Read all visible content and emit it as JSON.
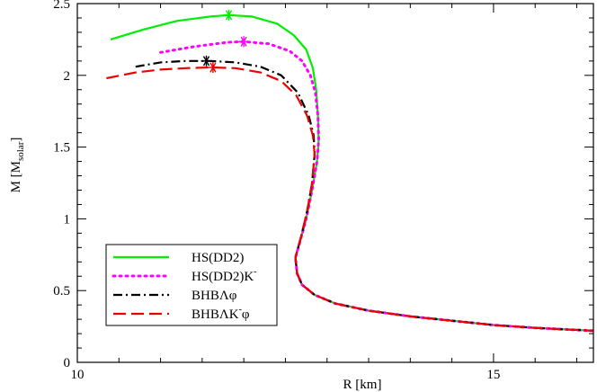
{
  "chart_data": {
    "type": "line",
    "title": "",
    "xlabel": "R [km]",
    "ylabel_main": "M [M",
    "ylabel_sub": "solar",
    "ylabel_close": "]",
    "xlim": [
      10,
      16.2
    ],
    "ylim": [
      0,
      2.5
    ],
    "xticks": [
      10,
      15
    ],
    "yticks": [
      0,
      0.5,
      1,
      1.5,
      2,
      2.5
    ],
    "xtick_labels": [
      "10",
      "15"
    ],
    "ytick_labels": [
      "0",
      "0.5",
      "1",
      "1.5",
      "2",
      "2.5"
    ],
    "minor_x_step": 0.5,
    "minor_y_step": 0.1,
    "grid": false,
    "legend_position": "bottom-left",
    "series": [
      {
        "name": "HS(DD2)",
        "color": "#00ee00",
        "style": "solid",
        "points": [
          [
            10.4,
            2.25
          ],
          [
            10.8,
            2.32
          ],
          [
            11.2,
            2.38
          ],
          [
            11.6,
            2.41
          ],
          [
            11.82,
            2.42
          ],
          [
            12.1,
            2.41
          ],
          [
            12.4,
            2.36
          ],
          [
            12.6,
            2.28
          ],
          [
            12.75,
            2.18
          ],
          [
            12.83,
            2.05
          ],
          [
            12.87,
            1.9
          ],
          [
            12.89,
            1.72
          ],
          [
            12.9,
            1.55
          ],
          [
            12.88,
            1.4
          ],
          [
            12.82,
            1.2
          ],
          [
            12.75,
            1.0
          ],
          [
            12.68,
            0.85
          ],
          [
            12.62,
            0.73
          ],
          [
            12.64,
            0.62
          ],
          [
            12.7,
            0.54
          ],
          [
            12.85,
            0.47
          ],
          [
            13.1,
            0.41
          ],
          [
            13.5,
            0.36
          ],
          [
            14.0,
            0.32
          ],
          [
            14.5,
            0.29
          ],
          [
            15.0,
            0.26
          ],
          [
            15.5,
            0.24
          ],
          [
            16.2,
            0.22
          ]
        ],
        "max_marker": [
          11.82,
          2.42
        ]
      },
      {
        "name": "HS(DD2)K",
        "name_sup": "-",
        "color": "#ff00ff",
        "style": "dotted",
        "points": [
          [
            11.0,
            2.16
          ],
          [
            11.4,
            2.2
          ],
          [
            11.8,
            2.23
          ],
          [
            12.0,
            2.235
          ],
          [
            12.3,
            2.22
          ],
          [
            12.55,
            2.17
          ],
          [
            12.7,
            2.1
          ],
          [
            12.8,
            2.0
          ],
          [
            12.86,
            1.88
          ],
          [
            12.89,
            1.72
          ],
          [
            12.9,
            1.55
          ],
          [
            12.88,
            1.4
          ],
          [
            12.82,
            1.2
          ],
          [
            12.75,
            1.0
          ],
          [
            12.68,
            0.85
          ],
          [
            12.62,
            0.73
          ],
          [
            12.64,
            0.62
          ],
          [
            12.7,
            0.54
          ],
          [
            12.85,
            0.47
          ],
          [
            13.1,
            0.41
          ],
          [
            13.5,
            0.36
          ],
          [
            14.0,
            0.32
          ],
          [
            14.5,
            0.29
          ],
          [
            15.0,
            0.26
          ],
          [
            15.5,
            0.24
          ],
          [
            16.2,
            0.22
          ]
        ],
        "max_marker": [
          12.0,
          2.235
        ]
      },
      {
        "name": "BHBΛφ",
        "color": "#000000",
        "style": "dashdot",
        "points": [
          [
            10.7,
            2.06
          ],
          [
            11.0,
            2.09
          ],
          [
            11.3,
            2.1
          ],
          [
            11.6,
            2.1
          ],
          [
            11.9,
            2.09
          ],
          [
            12.2,
            2.06
          ],
          [
            12.45,
            2.0
          ],
          [
            12.65,
            1.88
          ],
          [
            12.78,
            1.72
          ],
          [
            12.84,
            1.58
          ],
          [
            12.85,
            1.45
          ],
          [
            12.82,
            1.25
          ],
          [
            12.76,
            1.05
          ],
          [
            12.69,
            0.88
          ],
          [
            12.62,
            0.73
          ],
          [
            12.64,
            0.62
          ],
          [
            12.7,
            0.54
          ],
          [
            12.85,
            0.47
          ],
          [
            13.1,
            0.41
          ],
          [
            13.5,
            0.36
          ],
          [
            14.0,
            0.32
          ],
          [
            14.5,
            0.29
          ],
          [
            15.0,
            0.26
          ],
          [
            15.5,
            0.24
          ],
          [
            16.2,
            0.22
          ]
        ],
        "max_marker": [
          11.55,
          2.1
        ]
      },
      {
        "name": "BHBΛK",
        "name_sup": "-",
        "name_tail": "φ",
        "color": "#ee0000",
        "style": "dashed",
        "points": [
          [
            10.35,
            1.98
          ],
          [
            10.7,
            2.02
          ],
          [
            11.0,
            2.04
          ],
          [
            11.3,
            2.05
          ],
          [
            11.6,
            2.055
          ],
          [
            11.9,
            2.05
          ],
          [
            12.2,
            2.02
          ],
          [
            12.45,
            1.96
          ],
          [
            12.63,
            1.86
          ],
          [
            12.76,
            1.72
          ],
          [
            12.83,
            1.58
          ],
          [
            12.85,
            1.45
          ],
          [
            12.82,
            1.25
          ],
          [
            12.76,
            1.05
          ],
          [
            12.69,
            0.88
          ],
          [
            12.62,
            0.73
          ],
          [
            12.64,
            0.62
          ],
          [
            12.7,
            0.54
          ],
          [
            12.85,
            0.47
          ],
          [
            13.1,
            0.41
          ],
          [
            13.5,
            0.36
          ],
          [
            14.0,
            0.32
          ],
          [
            14.5,
            0.29
          ],
          [
            15.0,
            0.26
          ],
          [
            15.5,
            0.24
          ],
          [
            16.2,
            0.22
          ]
        ],
        "max_marker": [
          11.63,
          2.055
        ]
      }
    ]
  }
}
